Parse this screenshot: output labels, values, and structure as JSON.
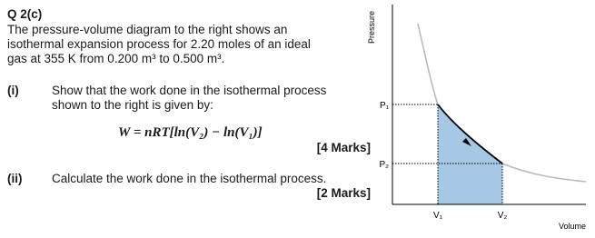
{
  "question": {
    "number": "Q 2(c)",
    "intro": [
      "The pressure-volume diagram to the right shows an",
      "isothermal expansion process for 2.20 moles of an ideal",
      "gas at 355 K from 0.200 m³ to 0.500 m³."
    ]
  },
  "parts": [
    {
      "label": "(i)",
      "text": [
        "Show that the work done in the isothermal process",
        "shown to the right is given by:"
      ],
      "formula": "W = nRT[ln(V₂) − ln(V₁)]",
      "marks": "[4 Marks]"
    },
    {
      "label": "(ii)",
      "text": [
        "Calculate the work done in the isothermal process."
      ],
      "marks": "[2 Marks]"
    }
  ],
  "diagram": {
    "y_axis_label": "Pressure",
    "x_axis_label": "Volume",
    "p1": "P₁",
    "p2": "P₂",
    "v1": "V₁",
    "v2": "V₂"
  }
}
